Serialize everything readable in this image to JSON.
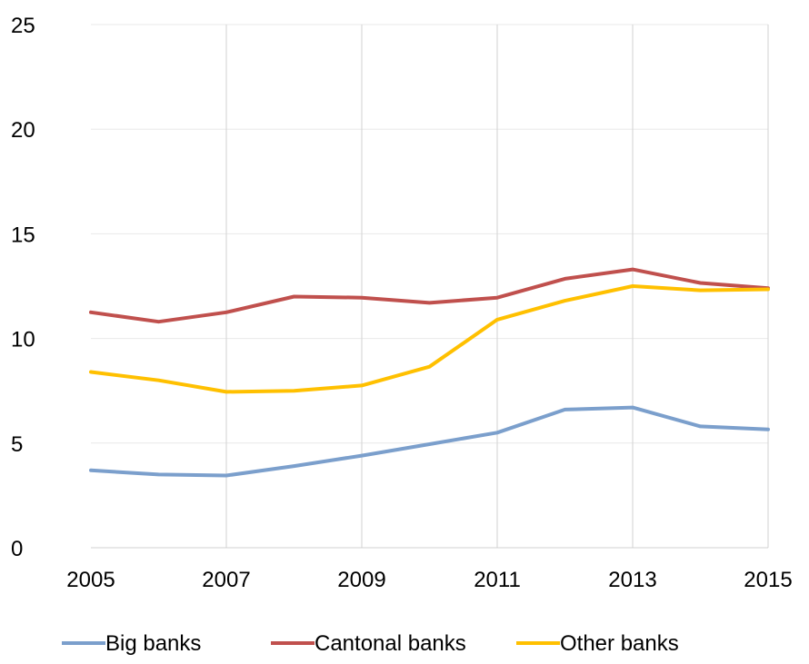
{
  "chart_data": {
    "type": "line",
    "title": "",
    "xlabel": "",
    "ylabel": "",
    "x": [
      2005,
      2006,
      2007,
      2008,
      2009,
      2010,
      2011,
      2012,
      2013,
      2014,
      2015
    ],
    "x_tick_labels": [
      "2005",
      "2007",
      "2009",
      "2011",
      "2013",
      "2015"
    ],
    "x_ticks": [
      2005,
      2007,
      2009,
      2011,
      2013,
      2015
    ],
    "ylim": [
      0,
      25
    ],
    "y_ticks": [
      0,
      5,
      10,
      15,
      20,
      25
    ],
    "y_tick_labels": [
      "0",
      "5",
      "10",
      "15",
      "20",
      "25"
    ],
    "grid": "vertical",
    "legend_position": "bottom",
    "series": [
      {
        "name": "Big banks",
        "color": "#7b9fcc",
        "values": [
          3.7,
          3.5,
          3.45,
          3.9,
          4.4,
          4.95,
          5.5,
          6.6,
          6.7,
          5.8,
          5.65
        ]
      },
      {
        "name": "Cantonal banks",
        "color": "#c0504d",
        "values": [
          11.25,
          10.8,
          11.25,
          12.0,
          11.95,
          11.7,
          11.95,
          12.85,
          13.3,
          12.65,
          12.4
        ]
      },
      {
        "name": "Other banks",
        "color": "#ffc000",
        "values": [
          8.4,
          8.0,
          7.45,
          7.5,
          7.75,
          8.65,
          10.9,
          11.8,
          12.5,
          12.3,
          12.35
        ]
      }
    ]
  }
}
